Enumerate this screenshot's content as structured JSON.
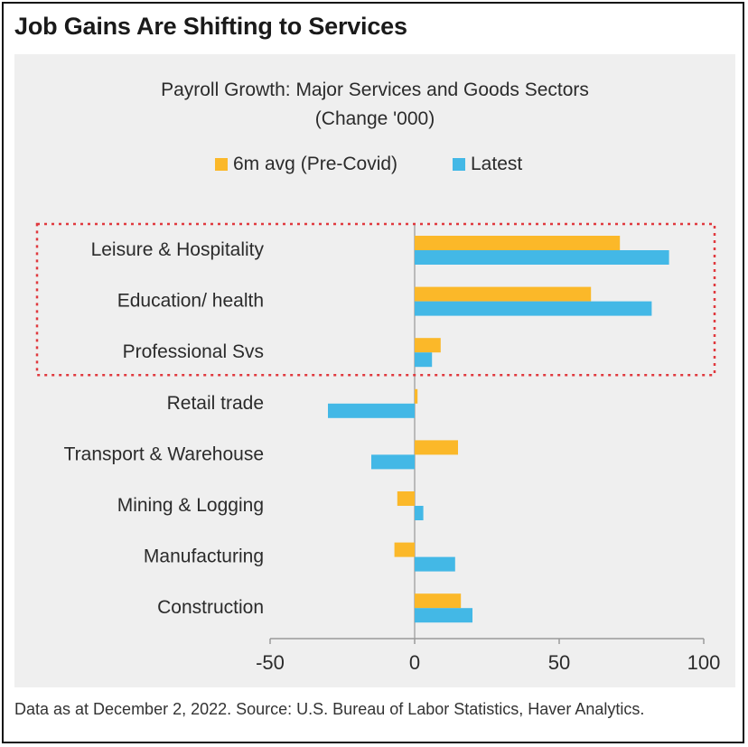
{
  "headline": "Job Gains Are Shifting to Services",
  "source_note": "Data as at December 2, 2022. Source: U.S. Bureau of Labor Statistics, Haver Analytics.",
  "colors": {
    "pre_covid": "#fbb829",
    "latest": "#43b8e6",
    "highlight_box": "#e0393e",
    "panel": "#efefef"
  },
  "chart_data": {
    "type": "bar",
    "orientation": "horizontal",
    "title": "Payroll Growth: Major Services and Goods Sectors",
    "subtitle": "(Change '000)",
    "categories": [
      "Leisure & Hospitality",
      "Education/ health",
      "Professional Svs",
      "Retail trade",
      "Transport & Warehouse",
      "Mining & Logging",
      "Manufacturing",
      "Construction"
    ],
    "series": [
      {
        "name": "6m avg (Pre-Covid)",
        "color": "#fbb829",
        "values": [
          71,
          61,
          9,
          1,
          15,
          -6,
          -7,
          16
        ]
      },
      {
        "name": "Latest",
        "color": "#43b8e6",
        "values": [
          88,
          82,
          6,
          -30,
          -15,
          3,
          14,
          20
        ]
      }
    ],
    "xlim": [
      -50,
      100
    ],
    "xticks": [
      -50,
      0,
      50,
      100
    ],
    "xtick_labels": [
      "-50",
      "0",
      "50",
      "100"
    ],
    "legend_position": "top-center",
    "highlighted_categories": [
      "Leisure & Hospitality",
      "Education/ health",
      "Professional Svs"
    ]
  }
}
